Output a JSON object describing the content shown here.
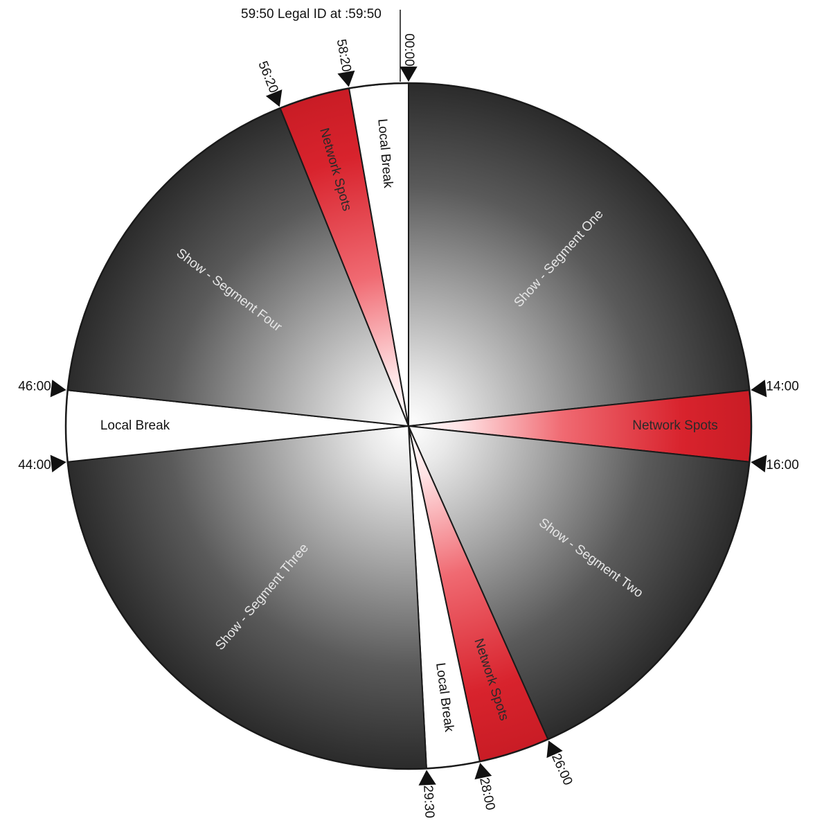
{
  "legal_id_note": "59:50 Legal ID at :59:50",
  "colors": {
    "show": "#2b2b2b",
    "network": "#d3232b",
    "local": "#ffffff",
    "show_text": "#e6e6e6",
    "network_text": "#2a2a2a",
    "local_text": "#111111",
    "outline": "#1a1a1a"
  },
  "segments": [
    {
      "start": "00:00",
      "end": "14:00",
      "kind": "show",
      "label": "Show - Segment One"
    },
    {
      "start": "14:00",
      "end": "16:00",
      "kind": "network",
      "label": "Network Spots"
    },
    {
      "start": "16:00",
      "end": "26:00",
      "kind": "show",
      "label": "Show - Segment Two"
    },
    {
      "start": "26:00",
      "end": "28:00",
      "kind": "network",
      "label": "Network Spots"
    },
    {
      "start": "28:00",
      "end": "29:30",
      "kind": "local",
      "label": "Local Break"
    },
    {
      "start": "29:30",
      "end": "44:00",
      "kind": "show",
      "label": "Show - Segment Three"
    },
    {
      "start": "44:00",
      "end": "46:00",
      "kind": "local",
      "label": "Local Break"
    },
    {
      "start": "46:00",
      "end": "56:20",
      "kind": "show",
      "label": "Show - Segment Four"
    },
    {
      "start": "56:20",
      "end": "58:20",
      "kind": "network",
      "label": "Network Spots"
    },
    {
      "start": "58:20",
      "end": "60:00",
      "kind": "local",
      "label": "Local Break"
    }
  ],
  "markers": [
    "00:00",
    "14:00",
    "16:00",
    "26:00",
    "28:00",
    "29:30",
    "44:00",
    "46:00",
    "56:20",
    "58:20"
  ]
}
